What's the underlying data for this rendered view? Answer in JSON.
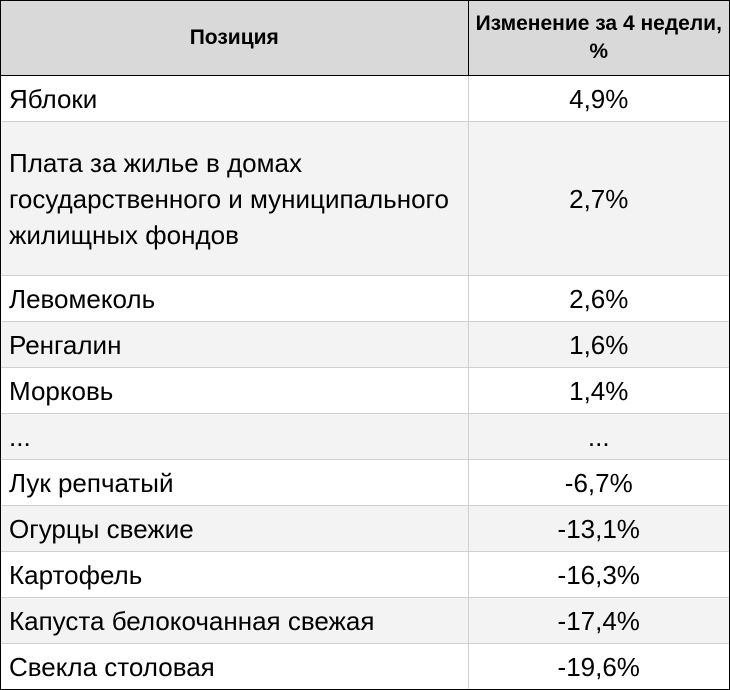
{
  "table": {
    "headers": [
      "Позиция",
      "Изменение за 4 недели, %"
    ],
    "rows": [
      {
        "name": "Яблоки",
        "value": "4,9%"
      },
      {
        "name": "Плата за жилье в домах государственного  и муниципального жилищных фондов",
        "value": "2,7%"
      },
      {
        "name": "Левомеколь",
        "value": "2,6%"
      },
      {
        "name": "Ренгалин",
        "value": "1,6%"
      },
      {
        "name": "Морковь",
        "value": "1,4%"
      },
      {
        "name": "...",
        "value": "..."
      },
      {
        "name": "Лук репчатый",
        "value": "-6,7%"
      },
      {
        "name": "Огурцы свежие",
        "value": "-13,1%"
      },
      {
        "name": "Картофель",
        "value": "-16,3%"
      },
      {
        "name": "Капуста белокочанная свежая",
        "value": "-17,4%"
      },
      {
        "name": "Свекла столовая",
        "value": "-19,6%"
      }
    ]
  },
  "colors": {
    "header_bg": "#d9d9d9",
    "alt_row_bg": "#f3f3f3",
    "border": "#000000",
    "grid": "#d0d0d0"
  }
}
